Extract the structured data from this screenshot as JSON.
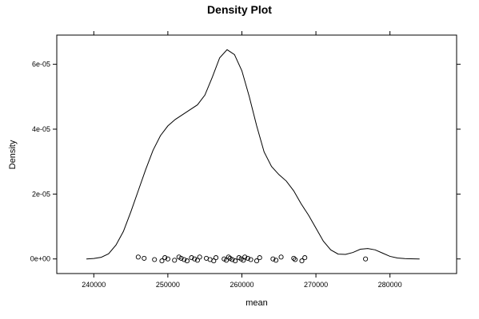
{
  "chart_data": {
    "type": "density",
    "title": "Density Plot",
    "xlabel": "mean",
    "ylabel": "Density",
    "xlim": [
      235000,
      289000
    ],
    "ylim": [
      -4.5e-06,
      6.9e-05
    ],
    "x_ticks": [
      {
        "value": 240000,
        "label": "240000"
      },
      {
        "value": 250000,
        "label": "250000"
      },
      {
        "value": 260000,
        "label": "260000"
      },
      {
        "value": 270000,
        "label": "270000"
      },
      {
        "value": 280000,
        "label": "280000"
      }
    ],
    "y_ticks": [
      {
        "value": 0,
        "label": "0e+00"
      },
      {
        "value": 2e-05,
        "label": "2e-05"
      },
      {
        "value": 4e-05,
        "label": "4e-05"
      },
      {
        "value": 6e-05,
        "label": "6e-05"
      }
    ],
    "curve": [
      [
        239000,
        0.0
      ],
      [
        240000,
        1.5e-07
      ],
      [
        241000,
        5e-07
      ],
      [
        242000,
        1.6e-06
      ],
      [
        243000,
        4.3e-06
      ],
      [
        244000,
        8.5e-06
      ],
      [
        245000,
        1.45e-05
      ],
      [
        246000,
        2.1e-05
      ],
      [
        247000,
        2.75e-05
      ],
      [
        248000,
        3.35e-05
      ],
      [
        249000,
        3.8e-05
      ],
      [
        250000,
        4.1e-05
      ],
      [
        251000,
        4.3e-05
      ],
      [
        252000,
        4.45e-05
      ],
      [
        253000,
        4.6e-05
      ],
      [
        254000,
        4.75e-05
      ],
      [
        255000,
        5.05e-05
      ],
      [
        256000,
        5.6e-05
      ],
      [
        257000,
        6.2e-05
      ],
      [
        258000,
        6.45e-05
      ],
      [
        259000,
        6.3e-05
      ],
      [
        260000,
        5.8e-05
      ],
      [
        261000,
        5e-05
      ],
      [
        262000,
        4.1e-05
      ],
      [
        263000,
        3.3e-05
      ],
      [
        264000,
        2.85e-05
      ],
      [
        265000,
        2.6e-05
      ],
      [
        266000,
        2.4e-05
      ],
      [
        267000,
        2.1e-05
      ],
      [
        268000,
        1.7e-05
      ],
      [
        269000,
        1.35e-05
      ],
      [
        270000,
        9.5e-06
      ],
      [
        271000,
        5.5e-06
      ],
      [
        272000,
        2.8e-06
      ],
      [
        273000,
        1.5e-06
      ],
      [
        274000,
        1.4e-06
      ],
      [
        275000,
        2e-06
      ],
      [
        276000,
        3e-06
      ],
      [
        277000,
        3.2e-06
      ],
      [
        278000,
        2.8e-06
      ],
      [
        279000,
        1.8e-06
      ],
      [
        280000,
        8e-07
      ],
      [
        281000,
        3e-07
      ],
      [
        282000,
        1e-07
      ],
      [
        284000,
        0.0
      ]
    ],
    "rug_points": [
      246000,
      246800,
      248200,
      249200,
      249600,
      250000,
      250900,
      251500,
      251800,
      252200,
      252600,
      253200,
      253600,
      254000,
      254300,
      255200,
      255700,
      256200,
      256500,
      257600,
      257900,
      258200,
      258400,
      258700,
      259100,
      259600,
      259900,
      260200,
      260400,
      260800,
      261200,
      262000,
      262400,
      264200,
      264600,
      265300,
      267000,
      267200,
      268100,
      268500,
      276700
    ]
  }
}
